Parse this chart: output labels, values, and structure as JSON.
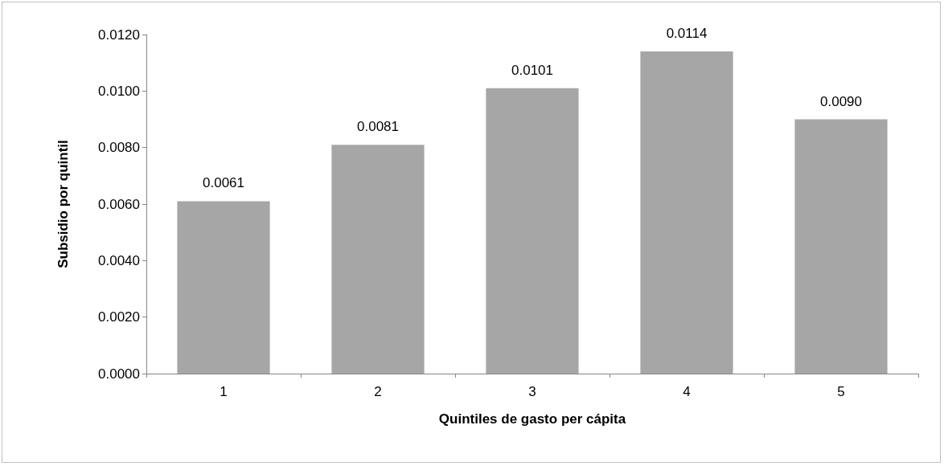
{
  "chart_data": {
    "type": "bar",
    "xlabel": "Quintiles de gasto per cápita",
    "ylabel": "Subsidio por quintil",
    "categories": [
      "1",
      "2",
      "3",
      "4",
      "5"
    ],
    "values": [
      0.0061,
      0.0081,
      0.0101,
      0.0114,
      0.009
    ],
    "value_labels": [
      "0.0061",
      "0.0081",
      "0.0101",
      "0.0114",
      "0.0090"
    ],
    "color": "#a6a6a6",
    "ylim": [
      0,
      0.012
    ],
    "yticks": [
      {
        "value": 0,
        "label": "0.0000"
      },
      {
        "value": 0.002,
        "label": "0.0020"
      },
      {
        "value": 0.004,
        "label": "0.0040"
      },
      {
        "value": 0.006,
        "label": "0.0060"
      },
      {
        "value": 0.008,
        "label": "0.0080"
      },
      {
        "value": 0.01,
        "label": "0.0100"
      },
      {
        "value": 0.012,
        "label": "0.0120"
      }
    ],
    "grid": false
  }
}
